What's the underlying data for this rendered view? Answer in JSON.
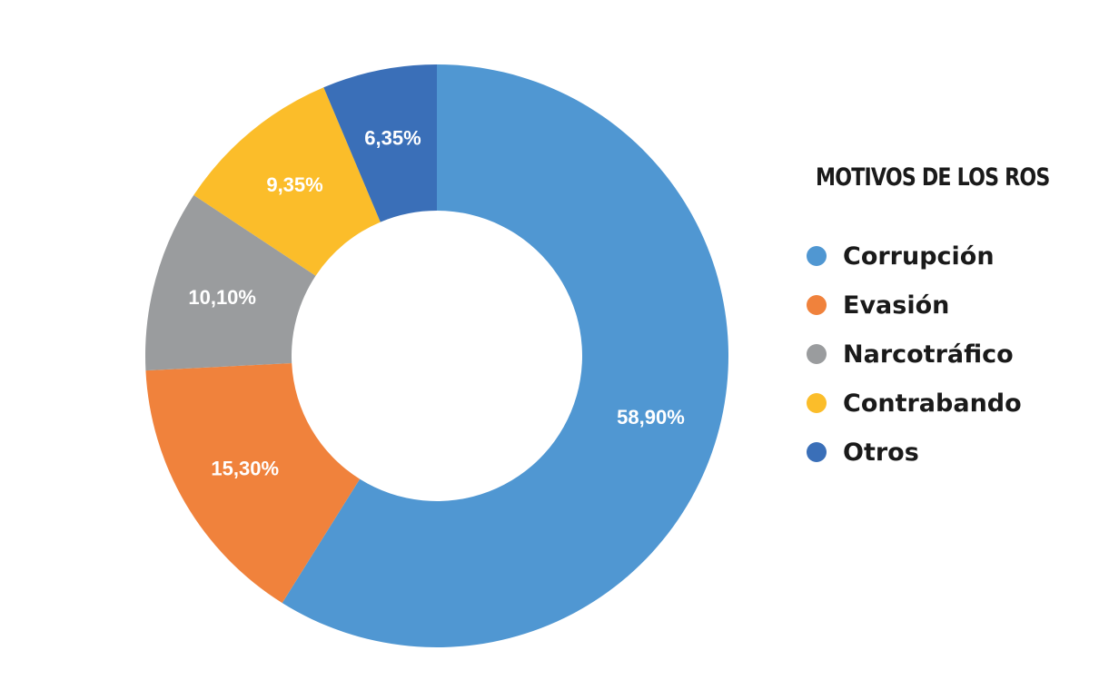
{
  "chart_data": {
    "type": "pie",
    "title": "MOTIVOS DE LOS ROS",
    "legend_position": "right",
    "donut": true,
    "slices": [
      {
        "label": "Corrupción",
        "value": 58.9,
        "display": "58,90%",
        "color": "#5097d2"
      },
      {
        "label": "Evasión",
        "value": 15.3,
        "display": "15,30%",
        "color": "#f0823c"
      },
      {
        "label": "Narcotráfico",
        "value": 10.1,
        "display": "10,10%",
        "color": "#9a9c9e"
      },
      {
        "label": "Contrabando",
        "value": 9.35,
        "display": "9,35%",
        "color": "#fbbd2a"
      },
      {
        "label": "Otros",
        "value": 6.35,
        "display": "6,35%",
        "color": "#3a6fb8"
      }
    ]
  }
}
